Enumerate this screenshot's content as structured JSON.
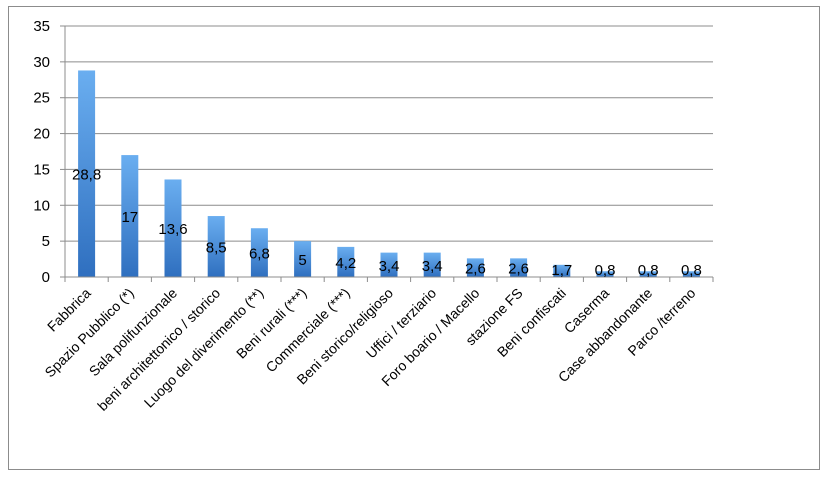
{
  "colors": {
    "bar_top": "#6aaef0",
    "bar_bottom": "#2f6fbf",
    "grid": "#8c8c8c",
    "axis": "#8c8c8c",
    "border": "#8c8c8c"
  },
  "chart_data": {
    "type": "bar",
    "title": "",
    "xlabel": "",
    "ylabel": "",
    "ylim": [
      0,
      35
    ],
    "yticks": [
      "0",
      "5",
      "10",
      "15",
      "20",
      "25",
      "30",
      "35"
    ],
    "ytick_values": [
      0,
      5,
      10,
      15,
      20,
      25,
      30,
      35
    ],
    "grid": true,
    "legend": "none",
    "categories": [
      "Fabbrica",
      "Spazio Pubblico (*)",
      "Sala polifunzionale",
      "beni architettonico / storico",
      "Luogo del diverimento (**)",
      "Beni rurali (***)",
      "Commerciale (***)",
      "Beni storico/religioso",
      "Uffici / terziario",
      "Foro boario / Macello",
      "stazione FS",
      "Beni confiscati",
      "Caserma",
      "Case abbandonante",
      "Parco /terreno"
    ],
    "values": [
      28.8,
      17,
      13.6,
      8.5,
      6.8,
      5,
      4.2,
      3.4,
      3.4,
      2.6,
      2.6,
      1.7,
      0.8,
      0.8,
      0.8
    ],
    "data_labels": [
      "28,8",
      "17",
      "13,6",
      "8,5",
      "6,8",
      "5",
      "4,2",
      "3,4",
      "3,4",
      "2,6",
      "2,6",
      "1,7",
      "0,8",
      "0,8",
      "0,8"
    ]
  }
}
